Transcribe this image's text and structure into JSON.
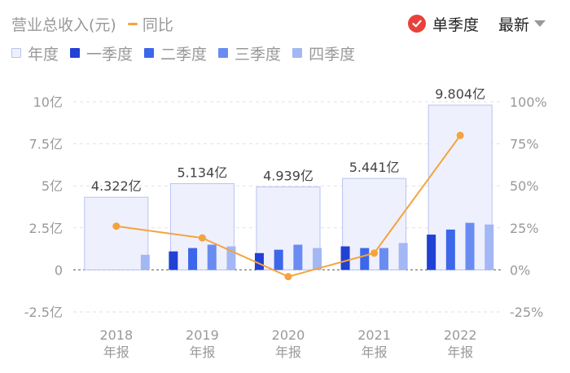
{
  "header": {
    "title": "营业总收入(元)",
    "yoy_label": "同比",
    "single_quarter_label": "单季度",
    "latest_label": "最新"
  },
  "legend": {
    "year": "年度",
    "q1": "一季度",
    "q2": "二季度",
    "q3": "三季度",
    "q4": "四季度"
  },
  "colors": {
    "year_fill": "#eef0fd",
    "year_stroke": "#b9c2f3",
    "q1": "#2140d4",
    "q2": "#3d67ea",
    "q3": "#6a8cf2",
    "q4": "#a3b7f5",
    "yoy": "#f5a33c",
    "check": "#e8413b"
  },
  "chart_data": {
    "type": "bar",
    "categories": [
      "2018",
      "2019",
      "2020",
      "2021",
      "2022"
    ],
    "category_sublabel": "年报",
    "annual_values": [
      4.322,
      5.134,
      4.939,
      5.441,
      9.804
    ],
    "annual_labels": [
      "4.322亿",
      "5.134亿",
      "4.939亿",
      "5.441亿",
      "9.804亿"
    ],
    "quarter_series": [
      {
        "name": "一季度",
        "values": [
          null,
          1.1,
          1.0,
          1.4,
          2.1
        ]
      },
      {
        "name": "二季度",
        "values": [
          null,
          1.3,
          1.2,
          1.3,
          2.4
        ]
      },
      {
        "name": "三季度",
        "values": [
          null,
          1.5,
          1.5,
          1.3,
          2.8
        ]
      },
      {
        "name": "四季度",
        "values": [
          0.9,
          1.4,
          1.3,
          1.6,
          2.7
        ]
      }
    ],
    "yoy_series": {
      "name": "同比",
      "values": [
        26,
        19,
        -4,
        10,
        80
      ]
    },
    "y_left": {
      "ticks": [
        10,
        7.5,
        5,
        2.5,
        0,
        -2.5
      ],
      "tick_labels": [
        "10亿",
        "7.5亿",
        "5亿",
        "2.5亿",
        "0",
        "-2.5亿"
      ],
      "range": [
        -2.5,
        10
      ]
    },
    "y_right": {
      "ticks": [
        100,
        75,
        50,
        25,
        0,
        -25
      ],
      "tick_labels": [
        "100%",
        "75%",
        "50%",
        "25%",
        "0%",
        "-25%"
      ],
      "range": [
        -25,
        100
      ]
    },
    "grid": true
  }
}
